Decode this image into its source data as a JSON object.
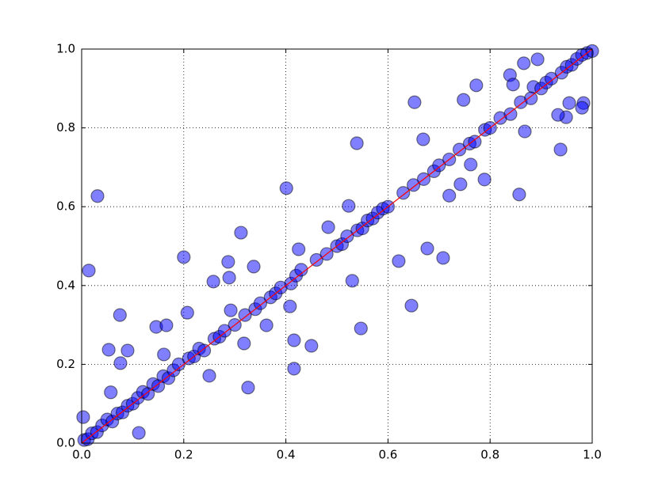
{
  "chart_data": {
    "type": "scatter",
    "points": {
      "color": "#0000ff",
      "x": [
        0.031,
        0.014,
        0.003,
        0.053,
        0.075,
        0.076,
        0.09,
        0.057,
        0.112,
        0.146,
        0.166,
        0.161,
        0.2,
        0.207,
        0.258,
        0.287,
        0.289,
        0.312,
        0.337,
        0.292,
        0.318,
        0.326,
        0.25,
        0.401,
        0.362,
        0.408,
        0.416,
        0.416,
        0.45,
        0.425,
        0.483,
        0.523,
        0.53,
        0.539,
        0.547,
        0.621,
        0.646,
        0.677,
        0.708,
        0.652,
        0.669,
        0.72,
        0.742,
        0.789,
        0.762,
        0.748,
        0.773,
        0.857,
        0.868,
        0.938,
        0.949,
        0.955,
        0.983,
        0.98,
        0.933,
        0.839,
        0.866,
        0.893,
        0.845,
        0.885,
        0.005,
        0.012,
        0.02,
        0.03,
        0.04,
        0.05,
        0.06,
        0.07,
        0.08,
        0.09,
        0.1,
        0.11,
        0.12,
        0.13,
        0.14,
        0.15,
        0.16,
        0.17,
        0.18,
        0.19,
        0.21,
        0.22,
        0.23,
        0.24,
        0.26,
        0.27,
        0.28,
        0.3,
        0.32,
        0.34,
        0.35,
        0.37,
        0.38,
        0.39,
        0.41,
        0.42,
        0.43,
        0.46,
        0.48,
        0.5,
        0.51,
        0.52,
        0.54,
        0.55,
        0.56,
        0.57,
        0.58,
        0.59,
        0.6,
        0.63,
        0.65,
        0.67,
        0.69,
        0.7,
        0.72,
        0.74,
        0.76,
        0.77,
        0.79,
        0.8,
        0.82,
        0.84,
        0.86,
        0.88,
        0.9,
        0.91,
        0.92,
        0.94,
        0.95,
        0.96,
        0.97,
        0.98,
        0.99,
        1.0
      ],
      "y": [
        0.627,
        0.438,
        0.066,
        0.237,
        0.325,
        0.203,
        0.235,
        0.129,
        0.026,
        0.295,
        0.299,
        0.225,
        0.472,
        0.331,
        0.41,
        0.46,
        0.42,
        0.534,
        0.448,
        0.337,
        0.253,
        0.141,
        0.171,
        0.647,
        0.299,
        0.347,
        0.261,
        0.189,
        0.247,
        0.492,
        0.548,
        0.602,
        0.412,
        0.761,
        0.291,
        0.462,
        0.349,
        0.494,
        0.47,
        0.865,
        0.771,
        0.628,
        0.657,
        0.669,
        0.707,
        0.871,
        0.908,
        0.631,
        0.791,
        0.745,
        0.827,
        0.863,
        0.863,
        0.851,
        0.833,
        0.934,
        0.964,
        0.974,
        0.91,
        0.904,
        0.008,
        0.01,
        0.025,
        0.028,
        0.045,
        0.06,
        0.055,
        0.075,
        0.078,
        0.095,
        0.1,
        0.115,
        0.13,
        0.125,
        0.15,
        0.145,
        0.17,
        0.165,
        0.185,
        0.2,
        0.215,
        0.22,
        0.24,
        0.235,
        0.265,
        0.27,
        0.285,
        0.3,
        0.325,
        0.34,
        0.355,
        0.37,
        0.38,
        0.395,
        0.405,
        0.425,
        0.44,
        0.465,
        0.48,
        0.5,
        0.505,
        0.525,
        0.54,
        0.545,
        0.565,
        0.57,
        0.585,
        0.595,
        0.6,
        0.635,
        0.655,
        0.67,
        0.69,
        0.705,
        0.72,
        0.745,
        0.76,
        0.765,
        0.795,
        0.8,
        0.825,
        0.835,
        0.865,
        0.875,
        0.9,
        0.915,
        0.925,
        0.94,
        0.955,
        0.96,
        0.975,
        0.985,
        0.99,
        0.995
      ]
    },
    "line": {
      "color": "#ff0000",
      "x": [
        0,
        1
      ],
      "y": [
        0,
        1
      ]
    },
    "xlim": [
      0,
      1
    ],
    "ylim": [
      0,
      1
    ],
    "xticks": [
      {
        "value": 0,
        "label": "0.0"
      },
      0.2,
      0.4,
      0.6,
      0.8,
      {
        "value": 1,
        "label": "1.0"
      }
    ],
    "yticks": [
      {
        "value": 0,
        "label": "0.0"
      },
      0.2,
      0.4,
      0.6,
      0.8,
      {
        "value": 1,
        "label": "1.0"
      }
    ],
    "grid": true
  }
}
